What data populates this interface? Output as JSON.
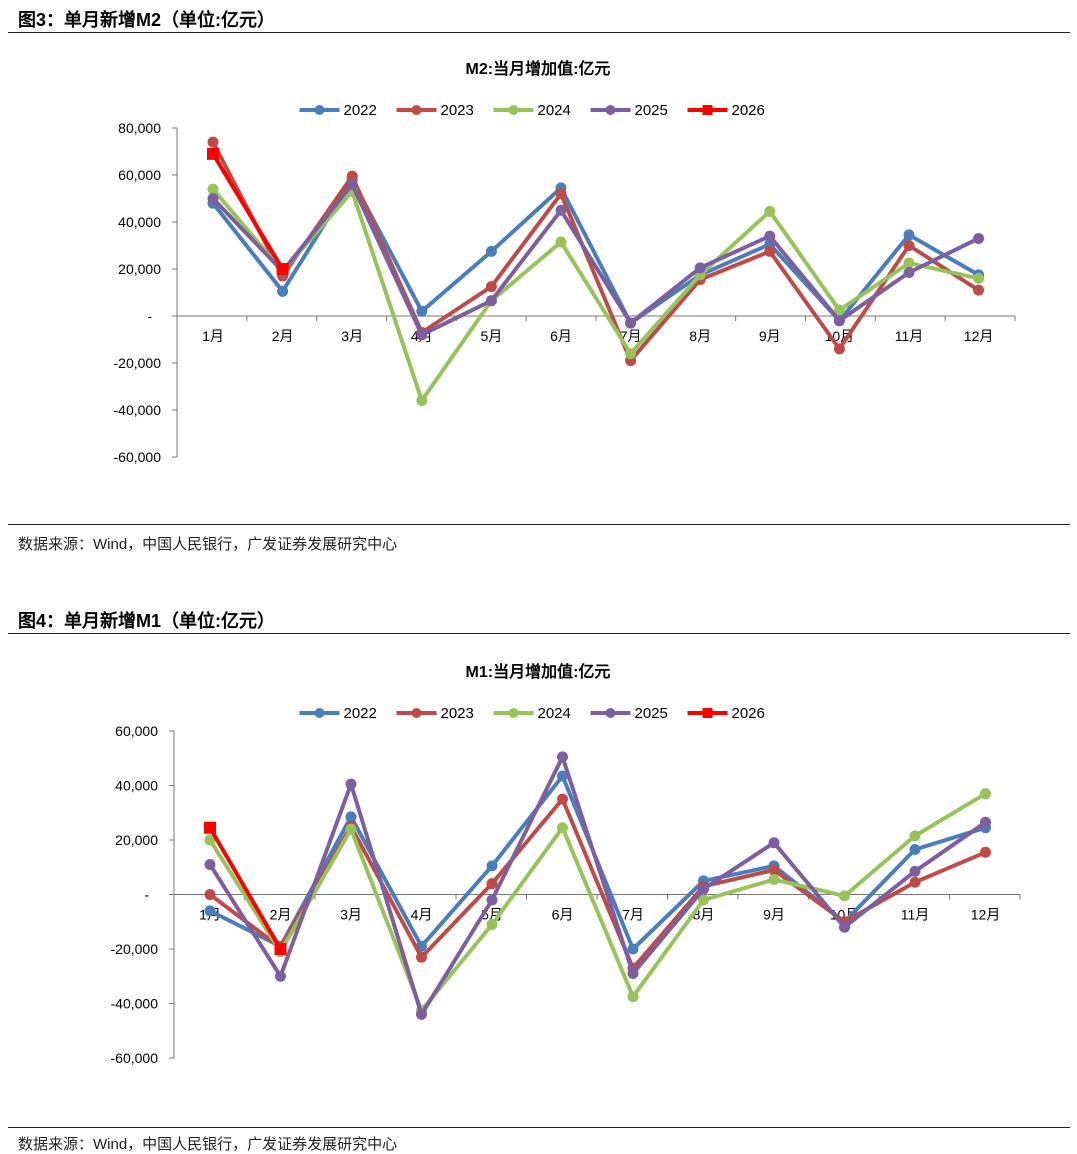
{
  "figures": [
    {
      "fig_title": "图3：单月新增M2（单位:亿元）",
      "source": "数据来源：Wind，中国人民银行，广发证券发展研究中心"
    },
    {
      "fig_title": "图4：单月新增M1（单位:亿元）",
      "source": "数据来源：Wind，中国人民银行，广发证券发展研究中心"
    }
  ],
  "chart_data": [
    {
      "type": "line",
      "title": "M2:当月增加值:亿元",
      "categories": [
        "1月",
        "2月",
        "3月",
        "4月",
        "5月",
        "6月",
        "7月",
        "8月",
        "9月",
        "10月",
        "11月",
        "12月"
      ],
      "ylim": [
        -60000,
        80000
      ],
      "yticks": [
        80000,
        60000,
        40000,
        20000,
        0,
        -20000,
        -40000,
        -60000
      ],
      "ytick_labels": [
        "80,000",
        "60,000",
        "40,000",
        "20,000",
        "-",
        "-20,000",
        "-40,000",
        "-60,000"
      ],
      "grid": false,
      "legend": "top",
      "series": [
        {
          "name": "2022",
          "color": "#4a7ebb",
          "marker": "circle",
          "values": [
            48000,
            10500,
            58000,
            2000,
            27500,
            54500,
            -3000,
            17500,
            30500,
            -2000,
            34500,
            17500
          ]
        },
        {
          "name": "2023",
          "color": "#be4b48",
          "marker": "circle",
          "values": [
            74000,
            17000,
            59500,
            -7000,
            12500,
            52000,
            -19000,
            15500,
            27500,
            -14000,
            30000,
            11000
          ]
        },
        {
          "name": "2024",
          "color": "#98c35a",
          "marker": "circle",
          "values": [
            54000,
            19000,
            53000,
            -36000,
            6500,
            31500,
            -16000,
            17500,
            44500,
            2500,
            22500,
            16000
          ]
        },
        {
          "name": "2025",
          "color": "#7d5fa0",
          "marker": "circle",
          "values": [
            50000,
            19000,
            56000,
            -8000,
            6500,
            45000,
            -3000,
            20500,
            34000,
            -2000,
            18500,
            33000
          ]
        },
        {
          "name": "2026",
          "color": "#ff0000",
          "marker": "square",
          "values": [
            69000,
            20000,
            null,
            null,
            null,
            null,
            null,
            null,
            null,
            null,
            null,
            null
          ]
        }
      ]
    },
    {
      "type": "line",
      "title": "M1:当月增加值:亿元",
      "categories": [
        "1月",
        "2月",
        "3月",
        "4月",
        "5月",
        "6月",
        "7月",
        "8月",
        "9月",
        "10月",
        "11月",
        "12月"
      ],
      "ylim": [
        -60000,
        60000
      ],
      "yticks": [
        60000,
        40000,
        20000,
        0,
        -20000,
        -40000,
        -60000
      ],
      "ytick_labels": [
        "60,000",
        "40,000",
        "20,000",
        "-",
        "-20,000",
        "-40,000",
        "-60,000"
      ],
      "grid": false,
      "legend": "top",
      "series": [
        {
          "name": "2022",
          "color": "#4a7ebb",
          "marker": "circle",
          "values": [
            -6000,
            -19000,
            28500,
            -19000,
            10500,
            43500,
            -20000,
            5000,
            10500,
            -10000,
            16500,
            24500
          ]
        },
        {
          "name": "2023",
          "color": "#be4b48",
          "marker": "circle",
          "values": [
            0,
            -19500,
            25000,
            -23000,
            4000,
            35000,
            -27000,
            3000,
            9000,
            -10000,
            4500,
            15500
          ]
        },
        {
          "name": "2024",
          "color": "#98c35a",
          "marker": "circle",
          "values": [
            20000,
            -21000,
            24000,
            -42500,
            -11000,
            24500,
            -37500,
            -2000,
            5500,
            -500,
            21500,
            37000
          ]
        },
        {
          "name": "2025",
          "color": "#7d5fa0",
          "marker": "circle",
          "values": [
            11000,
            -30000,
            40500,
            -44000,
            -2000,
            50500,
            -29000,
            2000,
            19000,
            -12000,
            8500,
            26500
          ]
        },
        {
          "name": "2026",
          "color": "#ff0000",
          "marker": "square",
          "values": [
            24500,
            -20000,
            null,
            null,
            null,
            null,
            null,
            null,
            null,
            null,
            null,
            null
          ]
        }
      ]
    }
  ]
}
